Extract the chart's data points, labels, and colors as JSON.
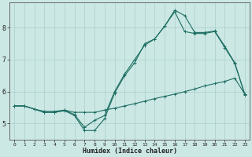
{
  "xlabel": "Humidex (Indice chaleur)",
  "bg_color": "#cce8e4",
  "grid_color": "#aacfcc",
  "line_color": "#1e6e63",
  "xlim": [
    -0.5,
    23.5
  ],
  "ylim": [
    4.5,
    8.8
  ],
  "yticks": [
    5,
    6,
    7,
    8
  ],
  "xticks": [
    0,
    1,
    2,
    3,
    4,
    5,
    6,
    7,
    8,
    9,
    10,
    11,
    12,
    13,
    14,
    15,
    16,
    17,
    18,
    19,
    20,
    21,
    22,
    23
  ],
  "line1_x": [
    0,
    1,
    2,
    3,
    4,
    5,
    6,
    7,
    8,
    9,
    10,
    11,
    12,
    13,
    14,
    15,
    16,
    17,
    18,
    19,
    20,
    21,
    22,
    23
  ],
  "line1_y": [
    5.55,
    5.55,
    5.45,
    5.35,
    5.35,
    5.4,
    5.25,
    4.78,
    4.78,
    5.15,
    5.95,
    6.5,
    6.9,
    7.5,
    7.65,
    8.05,
    8.55,
    8.38,
    7.85,
    7.85,
    7.9,
    7.42,
    6.9,
    5.9
  ],
  "line2_x": [
    0,
    1,
    2,
    3,
    4,
    5,
    6,
    7,
    8,
    9,
    10,
    11,
    12,
    13,
    14,
    15,
    16,
    17,
    18,
    19,
    20,
    21,
    22,
    23
  ],
  "line2_y": [
    5.55,
    5.55,
    5.45,
    5.35,
    5.35,
    5.42,
    5.28,
    4.88,
    5.1,
    5.25,
    6.0,
    6.55,
    7.0,
    7.45,
    7.65,
    8.05,
    8.5,
    7.88,
    7.82,
    7.82,
    7.88,
    7.38,
    6.88,
    5.92
  ],
  "line3_x": [
    0,
    1,
    2,
    3,
    4,
    5,
    6,
    7,
    8,
    9,
    10,
    11,
    12,
    13,
    14,
    15,
    16,
    17,
    18,
    19,
    20,
    21,
    22,
    23
  ],
  "line3_y": [
    5.55,
    5.55,
    5.45,
    5.38,
    5.38,
    5.42,
    5.35,
    5.35,
    5.35,
    5.42,
    5.48,
    5.55,
    5.62,
    5.7,
    5.78,
    5.85,
    5.92,
    6.0,
    6.08,
    6.18,
    6.25,
    6.32,
    6.42,
    5.92
  ]
}
